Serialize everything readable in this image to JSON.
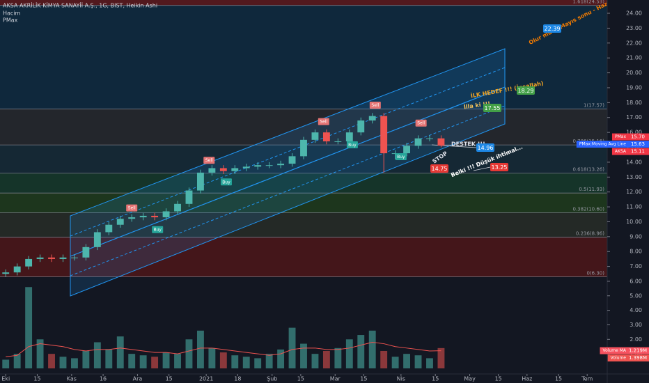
{
  "chart_data": [
    {
      "type": "candlestick",
      "title": "AKSA AKRİLİK KİMYA SANAYİİ A.Ş., 1G, BIST, Heikin Ashi",
      "indicator": "PMax",
      "xlim": [
        -2,
        210
      ],
      "xticks": [
        {
          "value": 0,
          "label": "Eki"
        },
        {
          "value": 11,
          "label": "15"
        },
        {
          "value": 23,
          "label": "Kas"
        },
        {
          "value": 34,
          "label": "16"
        },
        {
          "value": 46,
          "label": "Ara"
        },
        {
          "value": 57,
          "label": "15"
        },
        {
          "value": 70,
          "label": "2021"
        },
        {
          "value": 81,
          "label": "18"
        },
        {
          "value": 93,
          "label": "Şub"
        },
        {
          "value": 103,
          "label": "15"
        },
        {
          "value": 115,
          "label": "Mar"
        },
        {
          "value": 125,
          "label": "15"
        },
        {
          "value": 138,
          "label": "Nis"
        },
        {
          "value": 150,
          "label": "15"
        },
        {
          "value": 162,
          "label": "May"
        },
        {
          "value": 172,
          "label": "15"
        },
        {
          "value": 182,
          "label": "Haz"
        },
        {
          "value": 193,
          "label": "15"
        },
        {
          "value": 203,
          "label": "Tem"
        }
      ],
      "ylim": [
        5.72,
        24.89
      ],
      "yticks": [
        {
          "value": 7,
          "label": "7.00"
        },
        {
          "value": 8,
          "label": "8.00"
        },
        {
          "value": 9,
          "label": "9.00"
        },
        {
          "value": 10,
          "label": "10.00"
        },
        {
          "value": 11,
          "label": "11.00"
        },
        {
          "value": 12,
          "label": "12.00"
        },
        {
          "value": 13,
          "label": "13.00"
        },
        {
          "value": 14,
          "label": "14.00"
        },
        {
          "value": 15,
          "label": "15.00"
        },
        {
          "value": 16,
          "label": "16.00"
        },
        {
          "value": 17,
          "label": "17.00"
        },
        {
          "value": 18,
          "label": "18.00"
        },
        {
          "value": 19,
          "label": "19.00"
        },
        {
          "value": 20,
          "label": "20.00"
        },
        {
          "value": 21,
          "label": "21.00"
        },
        {
          "value": 22,
          "label": "22.00"
        },
        {
          "value": 23,
          "label": "23.00"
        },
        {
          "value": 24,
          "label": "24.00"
        }
      ],
      "grid": false,
      "up_color": "#4db6ac",
      "down_color": "#ef5350",
      "x": [
        0,
        4,
        8,
        12,
        16,
        20,
        24,
        28,
        32,
        36,
        40,
        44,
        48,
        52,
        56,
        60,
        64,
        68,
        72,
        76,
        80,
        84,
        88,
        92,
        96,
        100,
        104,
        108,
        112,
        116,
        120,
        124,
        128,
        132,
        136,
        140,
        144,
        148,
        152
      ],
      "open": [
        6.5,
        6.6,
        7.0,
        7.5,
        7.6,
        7.5,
        7.6,
        7.6,
        8.3,
        9.3,
        9.8,
        10.2,
        10.3,
        10.4,
        10.3,
        10.7,
        11.2,
        12.1,
        13.3,
        13.6,
        13.4,
        13.6,
        13.7,
        13.8,
        13.8,
        13.9,
        14.4,
        15.5,
        16.0,
        15.4,
        15.4,
        16.0,
        16.8,
        17.1,
        14.6,
        14.6,
        15.1,
        15.6,
        15.6
      ],
      "high": [
        6.8,
        7.2,
        7.7,
        7.8,
        7.8,
        7.8,
        7.8,
        8.5,
        9.5,
        10.0,
        10.4,
        10.5,
        10.6,
        10.6,
        10.9,
        11.4,
        12.3,
        13.5,
        13.8,
        13.8,
        13.8,
        13.9,
        14.0,
        14.0,
        14.1,
        14.6,
        15.7,
        16.2,
        16.2,
        15.6,
        16.2,
        17.0,
        17.3,
        17.3,
        14.8,
        15.3,
        15.8,
        15.8,
        15.8
      ],
      "low": [
        6.3,
        6.4,
        6.8,
        7.3,
        7.3,
        7.3,
        7.4,
        7.4,
        8.1,
        9.1,
        9.6,
        10.0,
        10.1,
        10.1,
        10.1,
        10.5,
        11.0,
        11.9,
        13.1,
        13.2,
        13.2,
        13.4,
        13.5,
        13.6,
        13.6,
        13.7,
        14.2,
        15.3,
        15.2,
        15.2,
        15.2,
        15.8,
        16.6,
        13.3,
        14.2,
        14.4,
        14.9,
        15.4,
        15.0
      ],
      "close": [
        6.6,
        7.0,
        7.5,
        7.6,
        7.5,
        7.6,
        7.6,
        8.3,
        9.3,
        9.8,
        10.2,
        10.3,
        10.4,
        10.3,
        10.7,
        11.2,
        12.1,
        13.3,
        13.6,
        13.4,
        13.6,
        13.7,
        13.8,
        13.8,
        13.9,
        14.4,
        15.5,
        16.0,
        15.4,
        15.4,
        16.0,
        16.8,
        17.1,
        14.6,
        14.6,
        15.1,
        15.6,
        15.6,
        15.11
      ],
      "fib": {
        "levels": [
          {
            "value": 24.53,
            "label": "1.618(24.53)"
          },
          {
            "value": 17.57,
            "label": "1(17.57)"
          },
          {
            "value": 15.16,
            "label": "0.786(15.16)"
          },
          {
            "value": 13.26,
            "label": "0.618(13.26)"
          },
          {
            "value": 11.93,
            "label": "0.5(11.93)"
          },
          {
            "value": 10.6,
            "label": "0.382(10.60)"
          },
          {
            "value": 8.96,
            "label": "0.236(8.96)"
          },
          {
            "value": 6.3,
            "label": "0(6.30)"
          }
        ],
        "colors": [
          "#5a1a1e",
          "#0f2a3f",
          "#26282d",
          "#162a36",
          "#16372a",
          "#1f3a1d",
          "#272b27",
          "#4a161a"
        ]
      },
      "markers": [
        {
          "name": "PMax",
          "value": 15.7,
          "label": "15.70",
          "color": "#f23645"
        },
        {
          "name": "PMax:Moving Avg Line",
          "value": 15.63,
          "label": "15.63",
          "color": "#2962ff"
        },
        {
          "name": "AKSA",
          "value": 15.11,
          "label": "15.11",
          "color": "#f23645"
        }
      ],
      "signals": [
        {
          "label": "Sell",
          "x": 44,
          "y": 10.6
        },
        {
          "label": "Buy",
          "x": 53,
          "y": 9.8
        },
        {
          "label": "Sell",
          "x": 71,
          "y": 13.8
        },
        {
          "label": "Buy",
          "x": 77,
          "y": 13.0
        },
        {
          "label": "Sell",
          "x": 111,
          "y": 16.4
        },
        {
          "label": "Buy",
          "x": 121,
          "y": 15.5
        },
        {
          "label": "Sell",
          "x": 129,
          "y": 17.5
        },
        {
          "label": "Buy",
          "x": 138,
          "y": 14.7
        },
        {
          "label": "Sell",
          "x": 145,
          "y": 16.3
        }
      ],
      "annotations": [
        "Olur mu ki Mayıs sonu - Haziran falan gibi :)",
        "İLK HEDEF !!! (İnşallah)",
        "İlla ki !!!",
        "DESTEK !!!",
        "STOP",
        "Belki !!! Düşük ihtimal..."
      ],
      "targets": [
        {
          "value": 22.39,
          "color": "#1e88e5"
        },
        {
          "value": 18.29,
          "color": "#43a047"
        },
        {
          "value": 17.55,
          "color": "#43a047"
        },
        {
          "value": 14.96,
          "color": "#1e88e5"
        },
        {
          "value": 14.75,
          "color": "#e53935"
        },
        {
          "value": 13.25,
          "color": "#e53935"
        }
      ]
    },
    {
      "type": "bar",
      "title": "Hacim",
      "ylim": [
        0,
        6.38
      ],
      "yticks": [
        {
          "value": 1,
          "label": "1.00"
        },
        {
          "value": 2,
          "label": "2.00"
        },
        {
          "value": 3,
          "label": "3.00"
        },
        {
          "value": 4,
          "label": "4.00"
        },
        {
          "value": 5,
          "label": "5.00"
        },
        {
          "value": 6,
          "label": "6.00"
        }
      ],
      "series": [
        {
          "name": "Volume",
          "values": [
            0.6,
            1.0,
            5.6,
            2.0,
            1.0,
            0.8,
            0.7,
            1.2,
            1.8,
            1.3,
            2.2,
            1.0,
            0.9,
            0.8,
            1.1,
            1.0,
            2.0,
            2.6,
            1.4,
            1.1,
            0.9,
            0.8,
            0.7,
            1.0,
            1.3,
            2.8,
            1.7,
            1.0,
            1.2,
            1.4,
            2.0,
            2.3,
            2.6,
            1.2,
            0.8,
            1.0,
            0.9,
            0.7,
            1.398
          ]
        },
        {
          "name": "Volume MA",
          "color": "#ef5350",
          "values": [
            0.8,
            0.9,
            1.5,
            1.7,
            1.6,
            1.5,
            1.3,
            1.2,
            1.3,
            1.3,
            1.4,
            1.3,
            1.2,
            1.1,
            1.1,
            1.0,
            1.2,
            1.4,
            1.4,
            1.3,
            1.2,
            1.1,
            1.0,
            0.9,
            1.0,
            1.3,
            1.4,
            1.4,
            1.3,
            1.3,
            1.4,
            1.6,
            1.8,
            1.7,
            1.5,
            1.4,
            1.3,
            1.2,
            1.219
          ]
        }
      ],
      "markers": [
        {
          "name": "Volume MA",
          "value": 1.219,
          "label": "1.219M",
          "color": "#f7525f"
        },
        {
          "name": "Volume",
          "value": 1.398,
          "label": "1.398M",
          "color": "#ef5350"
        }
      ]
    }
  ]
}
